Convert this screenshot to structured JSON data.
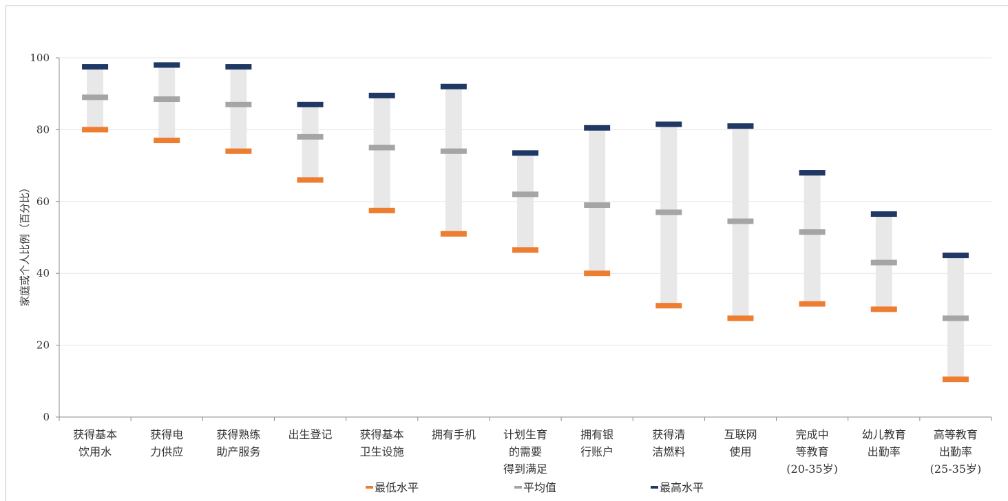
{
  "chart_data": {
    "type": "range",
    "ylabel": "家庭或个人比例（百分比）",
    "ylim": [
      0,
      100
    ],
    "yticks": [
      0,
      20,
      40,
      60,
      80,
      100
    ],
    "grid": true,
    "categories": [
      [
        "获得基本",
        "饮用水"
      ],
      [
        "获得电",
        "力供应"
      ],
      [
        "获得熟练",
        "助产服务"
      ],
      [
        "出生登记"
      ],
      [
        "获得基本",
        "卫生设施"
      ],
      [
        "拥有手机"
      ],
      [
        "计划生育",
        "的需要",
        "得到满足"
      ],
      [
        "拥有银",
        "行账户"
      ],
      [
        "获得清",
        "洁燃料"
      ],
      [
        "互联网",
        "使用"
      ],
      [
        "完成中",
        "等教育",
        "(20-35岁)"
      ],
      [
        "幼儿教育",
        "出勤率"
      ],
      [
        "高等教育",
        "出勤率",
        "(25-35岁)"
      ]
    ],
    "series": [
      {
        "name": "最低水平",
        "color": "#ed7d31",
        "values": [
          80,
          77,
          74,
          66,
          57.5,
          51,
          46.5,
          40,
          31,
          27.5,
          31.5,
          30,
          10.5
        ]
      },
      {
        "name": "平均值",
        "color": "#a5a5a5",
        "values": [
          89,
          88.5,
          87,
          78,
          75,
          74,
          62,
          59,
          57,
          54.5,
          51.5,
          43,
          27.5
        ]
      },
      {
        "name": "最高水平",
        "color": "#1f3864",
        "values": [
          97.5,
          98,
          97.5,
          87,
          89.5,
          92,
          73.5,
          80.5,
          81.5,
          81,
          68,
          56.5,
          45
        ]
      }
    ],
    "range_bar_color": "#e8e8e8",
    "legend_position": "bottom"
  }
}
